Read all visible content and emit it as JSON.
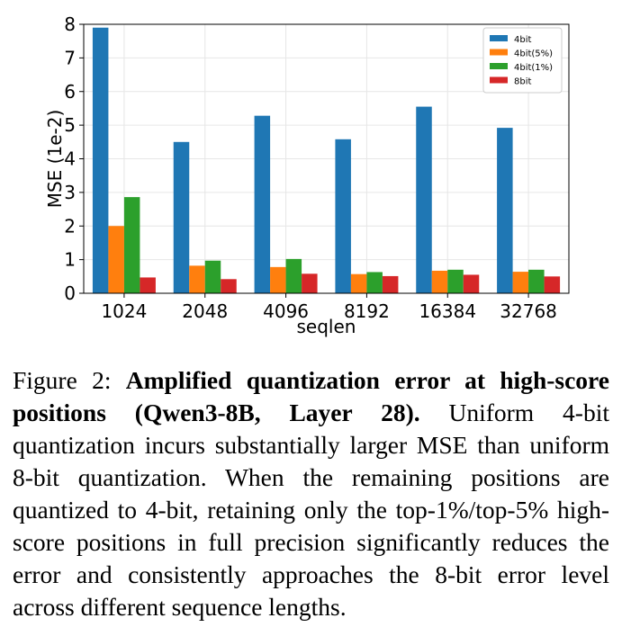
{
  "chart_data": {
    "type": "bar",
    "xlabel": "seqlen",
    "ylabel": "MSE (1e-2)",
    "categories": [
      "1024",
      "2048",
      "4096",
      "8192",
      "16384",
      "32768"
    ],
    "ylim": [
      0,
      8
    ],
    "yticks": [
      "0",
      "1",
      "2",
      "3",
      "4",
      "5",
      "6",
      "7",
      "8"
    ],
    "grid": true,
    "legend_position": "top-right",
    "series": [
      {
        "name": "4bit",
        "color": "#1f77b4",
        "values": [
          7.9,
          4.5,
          5.28,
          4.58,
          5.55,
          4.92
        ]
      },
      {
        "name": "4bit(5%)",
        "color": "#ff7f0e",
        "values": [
          2.0,
          0.82,
          0.78,
          0.57,
          0.67,
          0.64
        ]
      },
      {
        "name": "4bit(1%)",
        "color": "#2ca02c",
        "values": [
          2.86,
          0.97,
          1.02,
          0.63,
          0.7,
          0.7
        ]
      },
      {
        "name": "8bit",
        "color": "#d62728",
        "values": [
          0.47,
          0.42,
          0.58,
          0.51,
          0.55,
          0.5
        ]
      }
    ]
  },
  "caption": {
    "label": "Figure 2: ",
    "bold_title": "Amplified quantization error at high-score positions (Qwen3-8B, Layer 28).",
    "body": " Uniform 4-bit quantization incurs substantially larger MSE than uniform 8-bit quantization. When the remaining positions are quantized to 4-bit, retaining only the top-1%/top-5% high-score positions in full precision significantly reduces the error and consistently approaches the 8-bit error level across different sequence lengths."
  }
}
